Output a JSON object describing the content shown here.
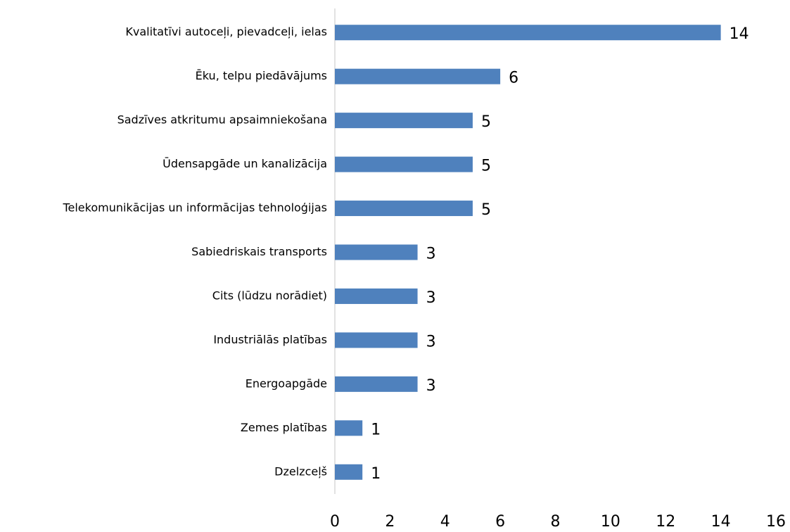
{
  "chart_data": {
    "type": "bar",
    "orientation": "horizontal",
    "categories": [
      "Kvalitatīvi autoceļi, pievadceļi, ielas",
      "Ēku, telpu piedāvājums",
      "Sadzīves atkritumu apsaimniekošana",
      "Ūdensapgāde un kanalizācija",
      "Telekomunikācijas un informācijas tehnoloģijas",
      "Sabiedriskais transports",
      "Cits (lūdzu norādiet)",
      "Industriālās platības",
      "Energoapgāde",
      "Zemes platības",
      "Dzelzceļš"
    ],
    "values": [
      14,
      6,
      5,
      5,
      5,
      3,
      3,
      3,
      3,
      1,
      1
    ],
    "color": "#4f81bd",
    "xlim": [
      0,
      16
    ],
    "xticks": [
      0,
      2,
      4,
      6,
      8,
      10,
      12,
      14,
      16
    ],
    "grid": false
  }
}
